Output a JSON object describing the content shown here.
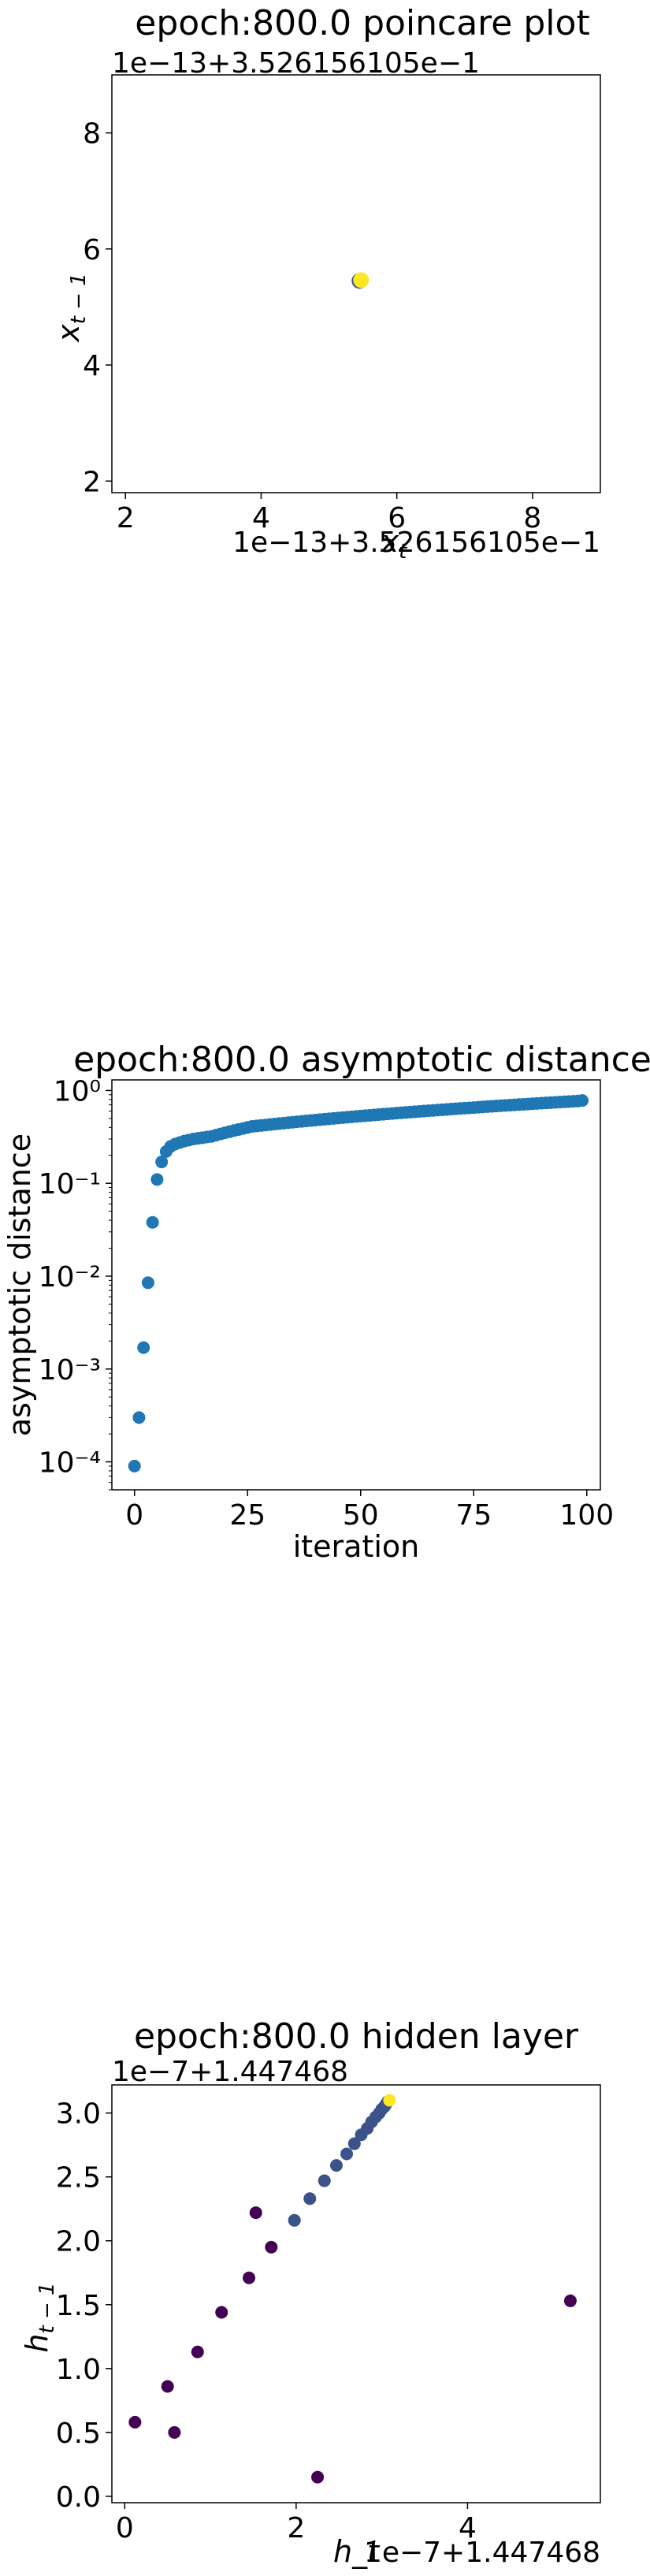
{
  "chart_data": [
    {
      "type": "scatter",
      "title": "epoch:800.0 poincare plot",
      "xlabel": "x_t",
      "ylabel": "x_{t−1}",
      "x_offset_label": "1e−13+3.526156105e−1",
      "y_offset_label": "1e−13+3.526156105e−1",
      "xlim": [
        1.8,
        9.0
      ],
      "ylim": [
        1.8,
        9.0
      ],
      "xticks": [
        "2",
        "4",
        "6",
        "8"
      ],
      "yticks": [
        "2",
        "4",
        "6",
        "8"
      ],
      "colors": {
        "point": "#fde725"
      },
      "points": [
        {
          "x": 5.45,
          "y": 5.45
        }
      ]
    },
    {
      "type": "scatter",
      "title": "epoch:800.0 asymptotic distance",
      "xlabel": "iteration",
      "ylabel": "asymptotic distance",
      "yscale": "log",
      "xlim": [
        -5,
        103
      ],
      "ylim": [
        5e-05,
        1.3
      ],
      "xticks": [
        "0",
        "25",
        "50",
        "75",
        "100"
      ],
      "yticks": [
        "10⁻⁴",
        "10⁻³",
        "10⁻²",
        "10⁻¹",
        "10⁰"
      ],
      "colors": {
        "point": "#1f77b4"
      },
      "values": [
        9e-05,
        0.0003,
        0.0017,
        0.0085,
        0.038,
        0.11,
        0.17,
        0.22,
        0.25,
        0.265,
        0.275,
        0.285,
        0.292,
        0.3,
        0.305,
        0.31,
        0.315,
        0.32,
        0.33,
        0.34,
        0.35,
        0.36,
        0.37,
        0.38,
        0.39,
        0.4,
        0.41,
        0.415,
        0.42,
        0.425,
        0.43,
        0.435,
        0.44,
        0.445,
        0.45,
        0.455,
        0.46,
        0.465,
        0.47,
        0.475,
        0.48,
        0.485,
        0.49,
        0.495,
        0.5,
        0.505,
        0.51,
        0.515,
        0.52,
        0.525,
        0.53,
        0.535,
        0.54,
        0.545,
        0.55,
        0.555,
        0.56,
        0.565,
        0.57,
        0.575,
        0.58,
        0.585,
        0.59,
        0.595,
        0.6,
        0.605,
        0.61,
        0.615,
        0.62,
        0.625,
        0.63,
        0.635,
        0.64,
        0.645,
        0.65,
        0.655,
        0.66,
        0.665,
        0.67,
        0.675,
        0.68,
        0.685,
        0.69,
        0.695,
        0.7,
        0.705,
        0.71,
        0.715,
        0.72,
        0.725,
        0.73,
        0.735,
        0.74,
        0.745,
        0.75,
        0.755,
        0.76,
        0.765,
        0.77,
        0.78
      ]
    },
    {
      "type": "scatter",
      "title": "epoch:800.0 hidden layer",
      "xlabel": "h_t",
      "ylabel": "h_{t−1}",
      "x_offset_label": "1e−7+1.447468",
      "y_offset_label": "1e−7+1.447468",
      "xlim": [
        -0.15,
        5.55
      ],
      "ylim": [
        -0.05,
        3.22
      ],
      "xticks": [
        "0",
        "2",
        "4"
      ],
      "yticks": [
        "0.0",
        "0.5",
        "1.0",
        "1.5",
        "2.0",
        "2.5",
        "3.0"
      ],
      "colors": {
        "start": "#440154",
        "mid": "#3b528b",
        "end": "#fde725"
      },
      "points": [
        {
          "x": 5.2,
          "y": 1.53
        },
        {
          "x": 2.25,
          "y": 0.15
        },
        {
          "x": 0.58,
          "y": 0.5
        },
        {
          "x": 0.12,
          "y": 0.58
        },
        {
          "x": 0.5,
          "y": 0.86
        },
        {
          "x": 0.85,
          "y": 1.13
        },
        {
          "x": 1.13,
          "y": 1.44
        },
        {
          "x": 1.45,
          "y": 1.71
        },
        {
          "x": 1.71,
          "y": 1.95
        },
        {
          "x": 1.53,
          "y": 2.22
        },
        {
          "x": 1.98,
          "y": 2.16
        },
        {
          "x": 2.16,
          "y": 2.33
        },
        {
          "x": 2.33,
          "y": 2.47
        },
        {
          "x": 2.47,
          "y": 2.59
        },
        {
          "x": 2.59,
          "y": 2.68
        },
        {
          "x": 2.68,
          "y": 2.76
        },
        {
          "x": 2.76,
          "y": 2.83
        },
        {
          "x": 2.83,
          "y": 2.88
        },
        {
          "x": 2.88,
          "y": 2.93
        },
        {
          "x": 2.93,
          "y": 2.97
        },
        {
          "x": 2.97,
          "y": 3.0
        },
        {
          "x": 3.0,
          "y": 3.03
        },
        {
          "x": 3.03,
          "y": 3.05
        },
        {
          "x": 3.05,
          "y": 3.07
        },
        {
          "x": 3.07,
          "y": 3.09
        },
        {
          "x": 3.09,
          "y": 3.1
        }
      ]
    }
  ]
}
